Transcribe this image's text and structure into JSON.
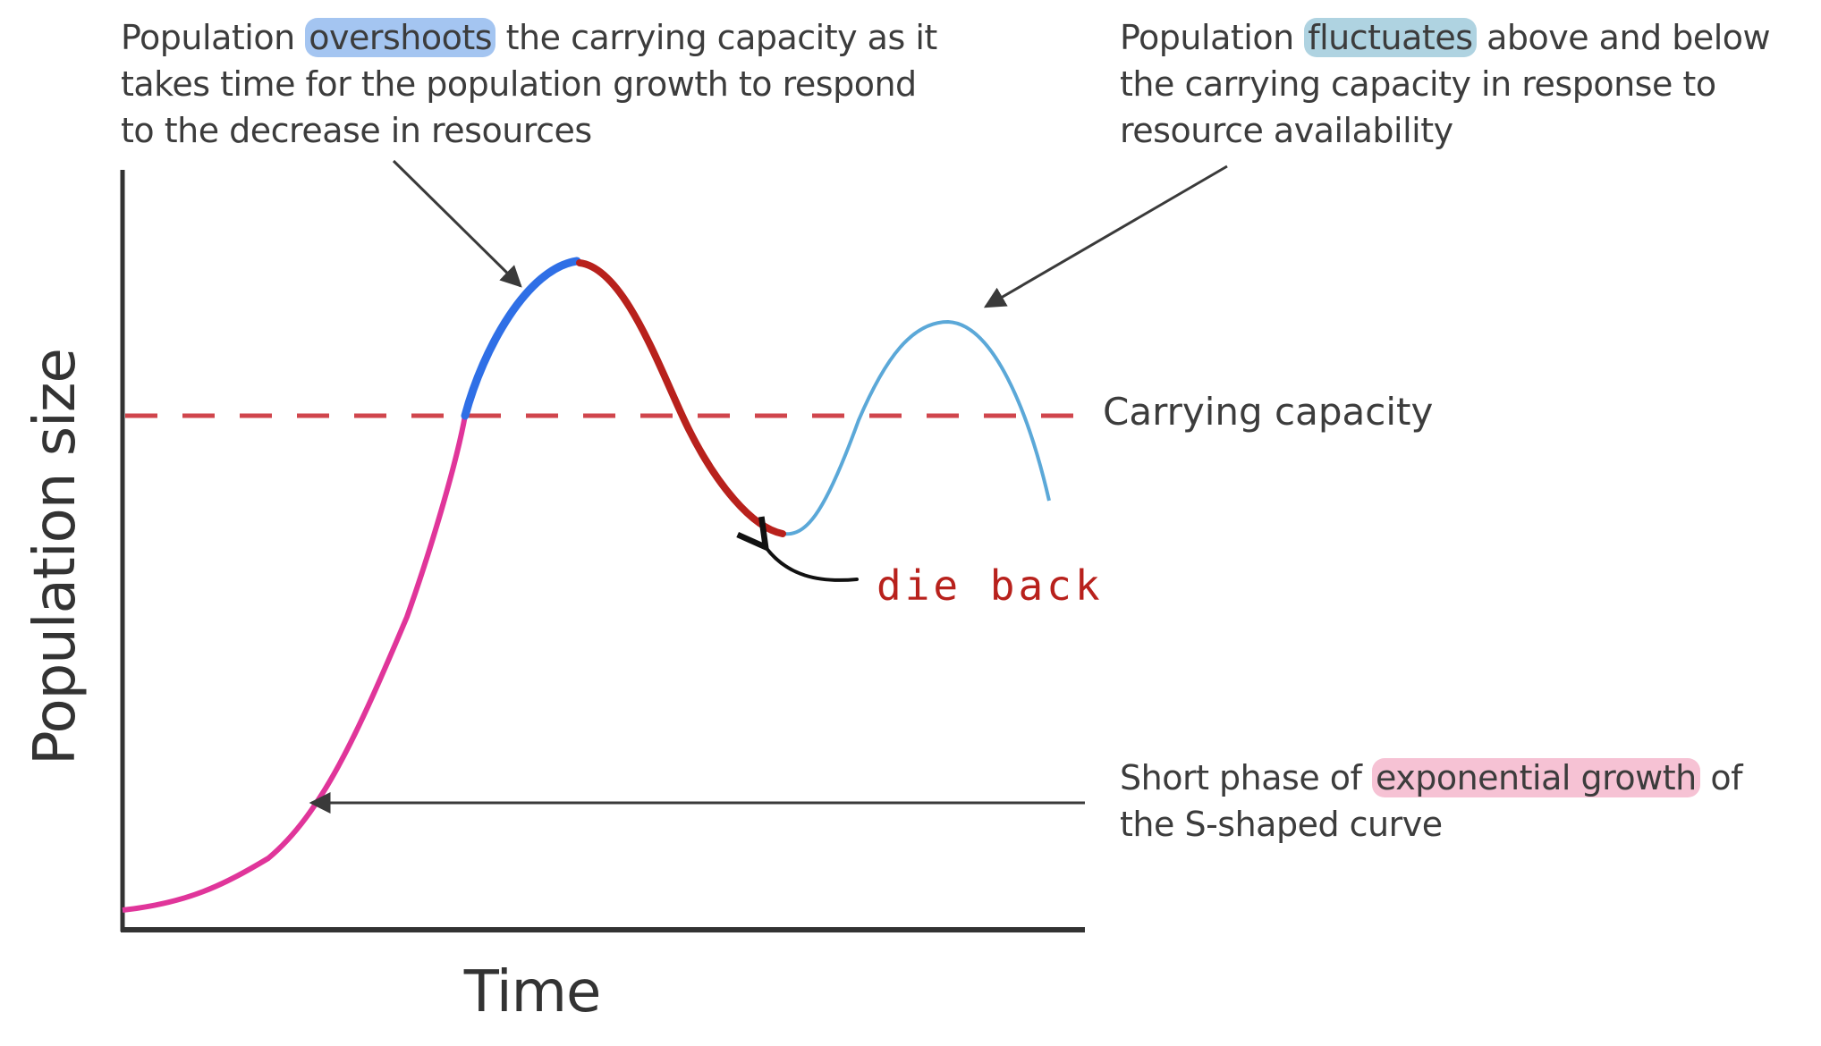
{
  "axes": {
    "y_label": "Population size",
    "x_label": "Time"
  },
  "carrying_capacity": {
    "label": "Carrying capacity",
    "line_color": "#d0454c"
  },
  "annotations": {
    "overshoot": {
      "before": "Population ",
      "highlight": "overshoots",
      "after": " the carrying capacity as it",
      "line2": "takes time for the population growth to respond",
      "line3": "to the decrease in resources"
    },
    "fluctuate": {
      "before": "Population ",
      "highlight": "fluctuates",
      "after": " above and below",
      "line2": "the carrying capacity in response to",
      "line3": "resource availability"
    },
    "exponential": {
      "before": "Short phase of ",
      "highlight": "exponential growth",
      "after": " of",
      "line2": "the S-shaped curve"
    },
    "dieback": "die back"
  },
  "colors": {
    "axis": "#333333",
    "curve_base": "#5ba8d8",
    "exponential_phase": "#e0359a",
    "overshoot_phase": "#2f6fe6",
    "dieback_phase": "#b8211c",
    "arrow": "#3a3a3a",
    "dieback_text": "#b8211c",
    "highlight_blue": "#5a96e6",
    "highlight_teal": "#6eafc8",
    "highlight_pink": "#eb78a0"
  }
}
